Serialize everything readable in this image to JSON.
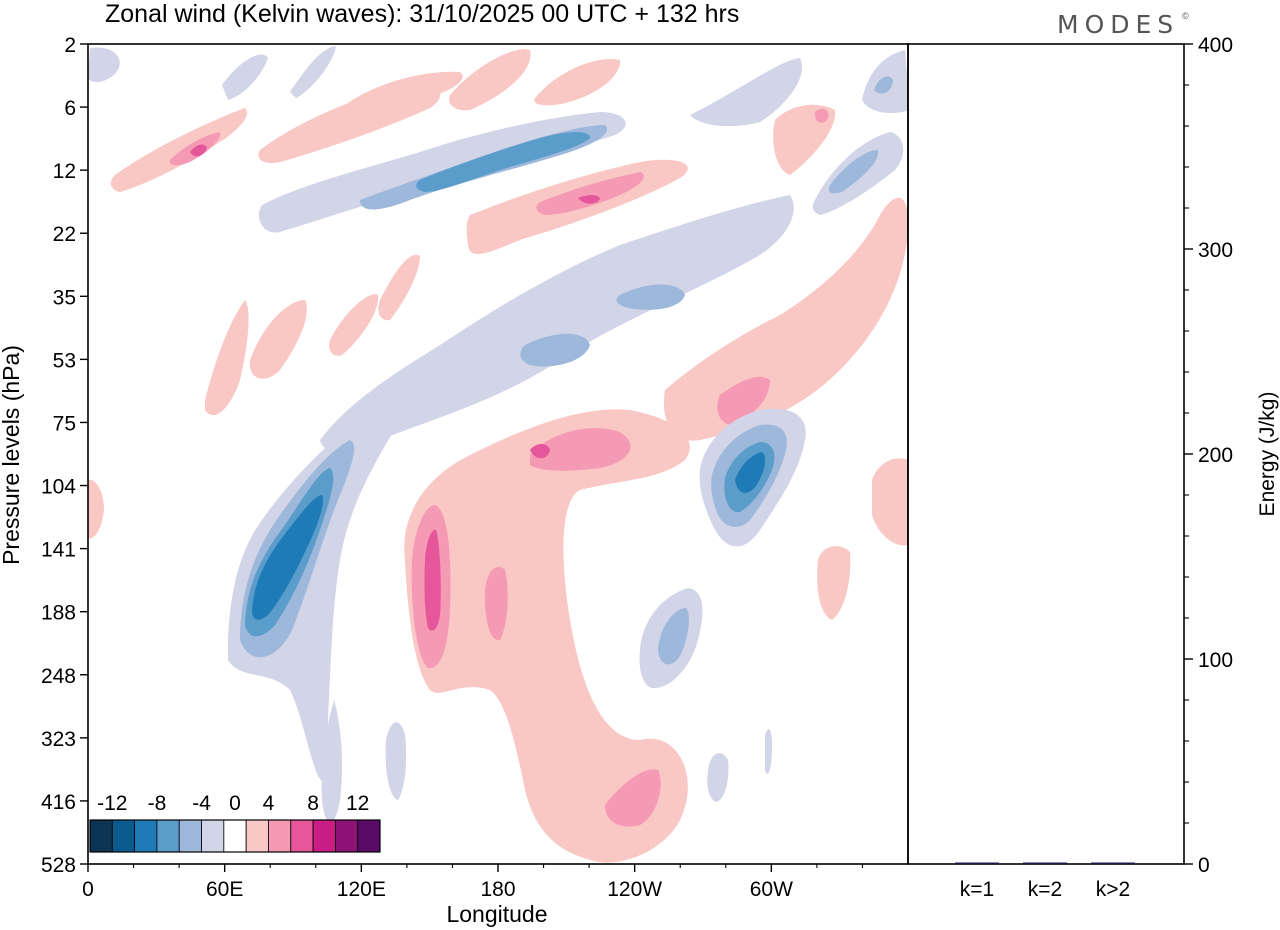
{
  "brand": {
    "text": "MODES",
    "mark": "©"
  },
  "chart_data": [
    {
      "type": "heatmap",
      "title": "Zonal wind (Kelvin waves):  31/10/2025  00 UTC  + 132 hrs",
      "xlabel": "Longitude",
      "ylabel": "Pressure levels (hPa)",
      "x_ticks": [
        "0",
        "60E",
        "120E",
        "180",
        "120W",
        "60W"
      ],
      "x_tick_values": [
        0,
        60,
        120,
        180,
        240,
        300
      ],
      "xlim": [
        0,
        360
      ],
      "y_ticks": [
        "2",
        "6",
        "12",
        "22",
        "35",
        "53",
        "75",
        "104",
        "141",
        "188",
        "248",
        "323",
        "416",
        "528"
      ],
      "colorbar": {
        "labels": [
          "-12",
          "-8",
          "-4",
          "0",
          "4",
          "8",
          "12"
        ],
        "levels": [
          -14,
          -12,
          -10,
          -8,
          -6,
          -4,
          -2,
          2,
          4,
          6,
          8,
          10,
          12,
          14
        ],
        "colors": [
          "#0d3553",
          "#0b5a8e",
          "#1f7bb6",
          "#5a9cca",
          "#9db8da",
          "#d2d4e8",
          "#ffffff",
          "#f9c7c4",
          "#f59ab4",
          "#e6569b",
          "#c91e85",
          "#8f1276",
          "#5a0a68"
        ]
      },
      "features": [
        {
          "name": "neg-anomaly-upper-band-a",
          "value": -4
        },
        {
          "name": "neg-core-upper-band-a",
          "value": -8
        },
        {
          "name": "pos-anomaly-upper-band-b",
          "value": 4
        },
        {
          "name": "pos-core-upper-band-b",
          "value": 8
        },
        {
          "name": "neg-anomaly-mid-band",
          "value": -4
        },
        {
          "name": "neg-core-lower-west",
          "value": -12
        },
        {
          "name": "pos-anomaly-lower-central",
          "value": 4
        },
        {
          "name": "pos-core-lower-central",
          "value": 8
        },
        {
          "name": "neg-core-lower-east",
          "value": -12
        }
      ]
    },
    {
      "type": "bar",
      "ylabel": "Energy (J/kg)",
      "categories": [
        "k=1",
        "k=2",
        "k>2"
      ],
      "values": [
        0.3,
        0.5,
        0.3
      ],
      "ylim": [
        0,
        400
      ],
      "y_ticks": [
        "0",
        "100",
        "200",
        "300",
        "400"
      ],
      "y_tick_values": [
        0,
        100,
        200,
        300,
        400
      ],
      "bar_color": "#1a1a4a"
    }
  ]
}
